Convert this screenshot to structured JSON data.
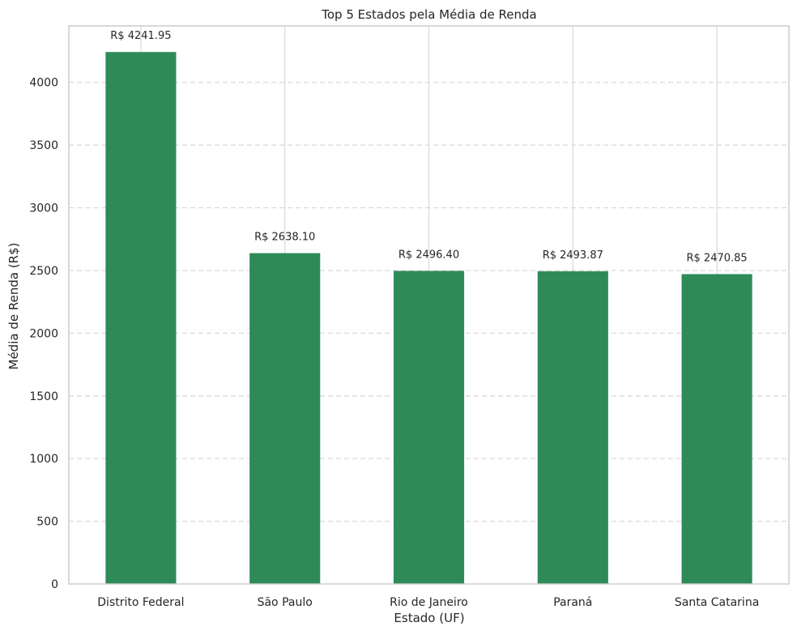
{
  "chart_data": {
    "type": "bar",
    "title": "Top 5 Estados pela Média de Renda",
    "xlabel": "Estado (UF)",
    "ylabel": "Média de Renda (R$)",
    "categories": [
      "Distrito Federal",
      "São Paulo",
      "Rio de Janeiro",
      "Paraná",
      "Santa Catarina"
    ],
    "values": [
      4241.95,
      2638.1,
      2496.4,
      2493.87,
      2470.85
    ],
    "data_labels": [
      "R$ 4241.95",
      "R$ 2638.10",
      "R$ 2496.40",
      "R$ 2493.87",
      "R$ 2470.85"
    ],
    "y_ticks": [
      0,
      500,
      1000,
      1500,
      2000,
      2500,
      3000,
      3500,
      4000
    ],
    "ylim": [
      0,
      4450
    ],
    "grid": "horizontal dashed, vertical solid",
    "bar_color": "#2e8b57",
    "grid_color": "#d8d8d8",
    "axes_color": "#cccccc",
    "text_color": "#262626"
  }
}
